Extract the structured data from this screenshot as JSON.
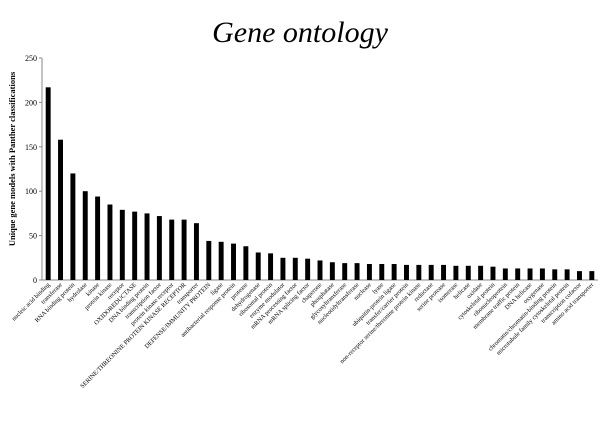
{
  "chart_data": {
    "type": "bar",
    "title": "Gene ontology",
    "xlabel": "",
    "ylabel": "Unique gene models with Panther classifications",
    "ylim": [
      0,
      250
    ],
    "yticks": [
      0,
      50,
      100,
      150,
      200,
      250
    ],
    "grid": false,
    "legend": "none",
    "bar_color": "#000000",
    "categories": [
      "nucleic acid binding",
      "transferase",
      "RNA binding protein",
      "hydrolase",
      "kinase",
      "protein kinase",
      "receptor",
      "OXIDOREDUCTASE",
      "DNA binding protein",
      "transcription factor",
      "protein kinase receptor",
      "SERINE/THREONINE PROTEIN KINASE RECEPTOR",
      "transporter",
      "DEFENSE/IMMUNITY PROTEIN",
      "ligase",
      "antibacterial response protein",
      "protease",
      "dehydrogenase",
      "ribosomal protein",
      "enzyme modulator",
      "mRNA processing factor",
      "mRNA splicing factor",
      "chaperone",
      "phosphatase",
      "glycosyltransferase",
      "nucleotidyltransferase",
      "nuclease",
      "lyase",
      "ubiquitin-protein ligase",
      "transfer/carrier protein",
      "non-receptor serine/threonine protein kinase",
      "reductase",
      "serine protease",
      "isomerase",
      "helicase",
      "oxidase",
      "cytoskeletal protein",
      "ribonucleoprotein",
      "membrane traffic protein",
      "DNA helicase",
      "oxygenase",
      "chromatin/chromatin-binding protein",
      "microtubule family cytoskeletal protein",
      "transcription cofactor",
      "amino acid transporter"
    ],
    "values": [
      217,
      158,
      120,
      100,
      94,
      85,
      79,
      77,
      75,
      72,
      68,
      68,
      64,
      44,
      43,
      41,
      38,
      31,
      30,
      25,
      25,
      24,
      22,
      20,
      19,
      19,
      18,
      18,
      18,
      17,
      17,
      17,
      17,
      16,
      16,
      16,
      15,
      13,
      13,
      13,
      13,
      12,
      12,
      10,
      10
    ]
  }
}
